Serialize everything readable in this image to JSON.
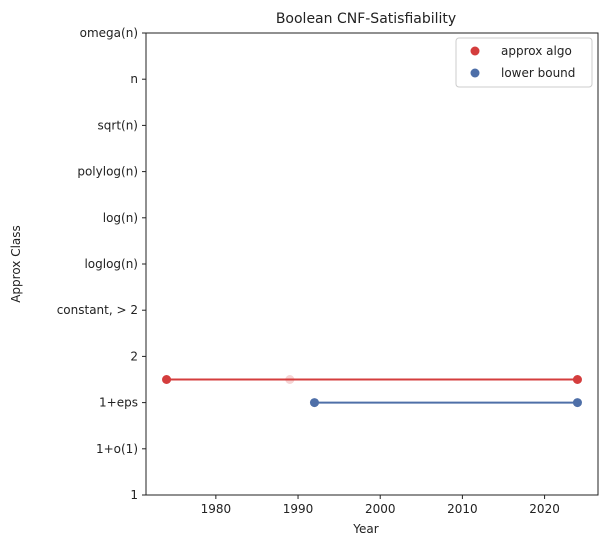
{
  "chart_data": {
    "type": "scatter",
    "title": "Boolean CNF-Satisfiability",
    "xlabel": "Year",
    "ylabel": "Approx Class",
    "xlim": [
      1971.5,
      2026.5
    ],
    "x_ticks": [
      1980,
      1990,
      2000,
      2010,
      2020
    ],
    "y_categories": [
      "1",
      "1+o(1)",
      "1+eps",
      "2",
      "constant, > 2",
      "loglog(n)",
      "log(n)",
      "polylog(n)",
      "sqrt(n)",
      "n",
      "omega(n)"
    ],
    "grid": false,
    "legend_position": "top-right",
    "series": [
      {
        "name": "approx algo",
        "color": "#d62728",
        "color_hex": "#d43d3d",
        "y_level": 2.5,
        "line": [
          1974,
          2024
        ],
        "points": [
          {
            "x": 1974,
            "faded": false
          },
          {
            "x": 1989,
            "faded": true
          },
          {
            "x": 2024,
            "faded": false
          }
        ]
      },
      {
        "name": "lower bound",
        "color_hex": "#4e6fa8",
        "y_level": 2,
        "line": [
          1992,
          2024
        ],
        "points": [
          {
            "x": 1992,
            "faded": false
          },
          {
            "x": 2024,
            "faded": false
          }
        ]
      }
    ]
  }
}
